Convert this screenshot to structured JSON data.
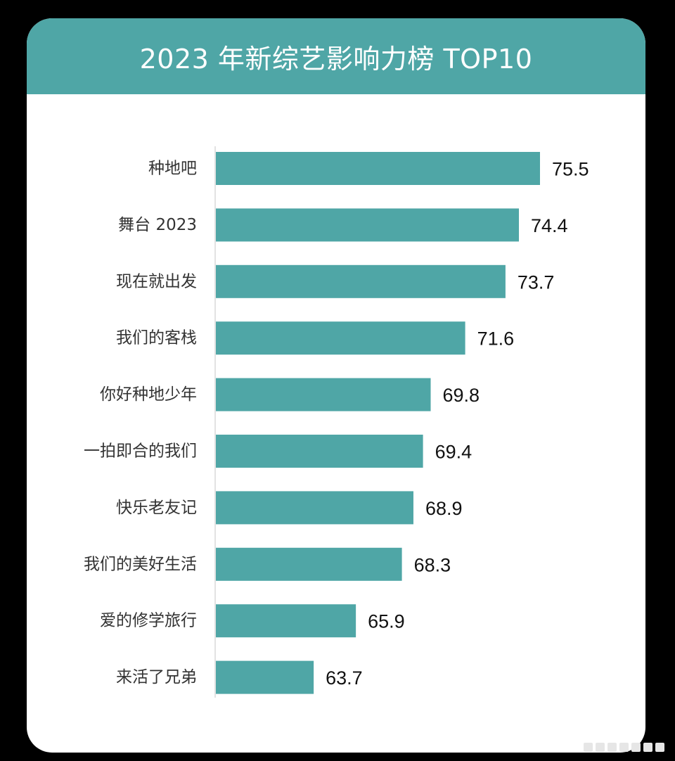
{
  "chart_data": {
    "type": "bar",
    "orientation": "horizontal",
    "title": "2023 年新综艺影响力榜 TOP10",
    "categories": [
      "种地吧",
      "舞台 2023",
      "现在就出发",
      "我们的客栈",
      "你好种地少年",
      "一拍即合的我们",
      "快乐老友记",
      "我们的美好生活",
      "爱的修学旅行",
      "来活了兄弟"
    ],
    "values": [
      75.5,
      74.4,
      73.7,
      71.6,
      69.8,
      69.4,
      68.9,
      68.3,
      65.9,
      63.7
    ],
    "data_labels": [
      "75.5",
      "74.4",
      "73.7",
      "71.6",
      "69.8",
      "69.4",
      "68.9",
      "68.3",
      "65.9",
      "63.7"
    ],
    "xlim": [
      58.6,
      75.5
    ],
    "grid": false,
    "legend": "none",
    "bar_color": "#4fa6a6",
    "header_color": "#4fa6a6",
    "axis_line_color": "#d9d9d9"
  }
}
